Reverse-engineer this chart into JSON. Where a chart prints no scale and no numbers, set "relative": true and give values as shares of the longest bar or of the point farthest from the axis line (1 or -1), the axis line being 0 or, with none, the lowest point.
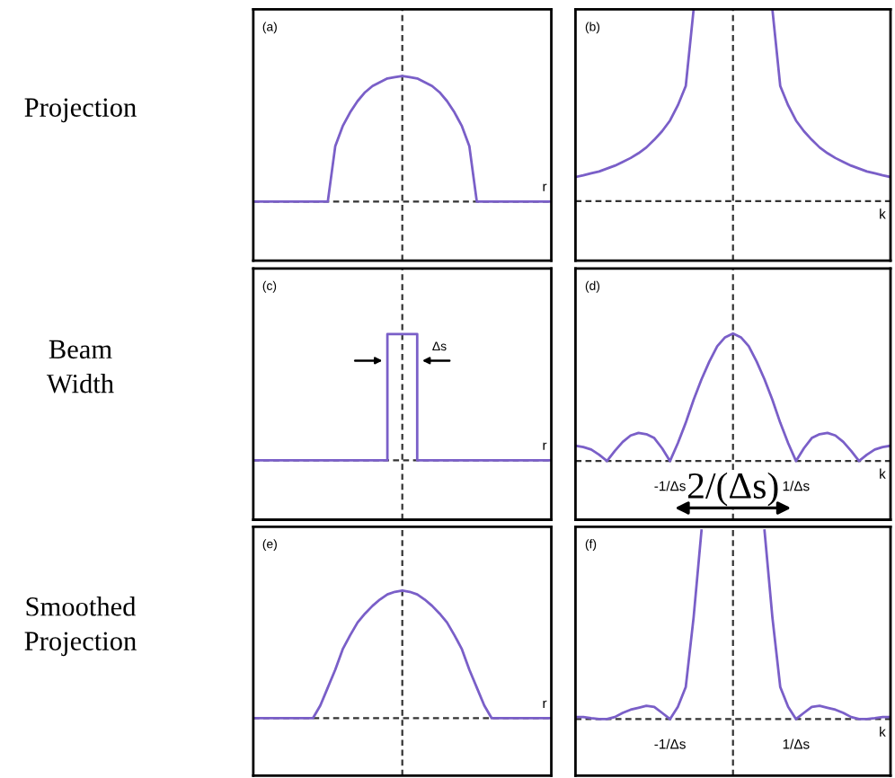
{
  "chart_data": [
    {
      "type": "line",
      "title": "(a)",
      "ylabel": "Projection",
      "xlabel": "r",
      "relative": true,
      "categories": [
        null,
        null,
        null,
        null,
        null,
        null,
        null,
        null,
        null,
        null,
        null,
        null,
        null,
        null,
        null,
        null,
        null,
        null,
        null,
        null,
        null,
        null,
        null,
        null,
        null,
        null,
        null,
        null,
        null,
        null,
        null,
        null,
        null,
        null,
        null,
        null,
        null,
        null,
        null,
        null,
        null
      ],
      "series": [
        {
          "color": "#7a5fc8",
          "values": [
            0,
            0,
            0,
            0,
            0,
            0,
            0,
            0,
            0,
            0,
            0,
            0.44,
            0.6,
            0.71,
            0.8,
            0.87,
            0.92,
            0.95,
            0.98,
            0.99,
            1,
            0.99,
            0.98,
            0.95,
            0.92,
            0.87,
            0.8,
            0.71,
            0.6,
            0.44,
            0,
            0,
            0,
            0,
            0,
            0,
            0,
            0,
            0,
            0,
            0
          ]
        }
      ]
    },
    {
      "type": "line",
      "title": "(b)",
      "xlabel": "k",
      "relative": true,
      "categories": [
        null,
        null,
        null,
        null,
        null,
        null,
        null,
        null,
        null,
        null,
        null,
        null,
        null,
        null,
        null,
        null,
        null,
        null,
        null,
        null,
        null,
        null,
        null,
        null,
        null,
        null,
        null,
        null,
        null,
        null,
        null,
        null,
        null,
        null,
        null,
        null,
        null,
        null,
        null,
        null,
        null
      ],
      "series": [
        {
          "color": "#7a5fc8",
          "values": [
            0.126,
            0.135,
            0.145,
            0.155,
            0.17,
            0.185,
            0.205,
            0.225,
            0.25,
            0.28,
            0.32,
            0.365,
            0.42,
            0.5,
            0.6,
            1,
            null,
            null,
            null,
            null,
            null,
            null,
            null,
            null,
            null,
            1,
            0.6,
            0.5,
            0.42,
            0.365,
            0.32,
            0.28,
            0.25,
            0.225,
            0.205,
            0.185,
            0.17,
            0.155,
            0.145,
            0.135,
            0.126
          ]
        }
      ]
    },
    {
      "type": "step",
      "title": "(c)",
      "ylabel": "Beam Width",
      "xlabel": "r",
      "relative": true,
      "annotations": [
        "Δs"
      ],
      "categories": [
        null,
        null,
        null,
        null,
        null,
        null,
        null,
        null,
        null,
        null,
        null,
        null,
        null,
        null,
        null,
        null,
        null,
        null,
        null,
        null,
        null,
        null,
        null,
        null,
        null,
        null,
        null,
        null,
        null,
        null,
        null,
        null,
        null,
        null,
        null,
        null,
        null,
        null,
        null,
        null,
        null
      ],
      "series": [
        {
          "color": "#7a5fc8",
          "values": [
            0,
            0,
            0,
            0,
            0,
            0,
            0,
            0,
            0,
            0,
            0,
            0,
            0,
            0,
            0,
            0,
            0,
            0,
            1,
            1,
            1,
            1,
            0,
            0,
            0,
            0,
            0,
            0,
            0,
            0,
            0,
            0,
            0,
            0,
            0,
            0,
            0,
            0,
            0,
            0,
            0
          ]
        }
      ]
    },
    {
      "type": "line",
      "title": "(d)",
      "xlabel": "k",
      "relative": true,
      "annotations": [
        "2/(Δs)"
      ],
      "categories": [
        null,
        null,
        null,
        null,
        null,
        null,
        null,
        null,
        null,
        null,
        null,
        null,
        "-1/Δs",
        null,
        null,
        null,
        null,
        null,
        null,
        null,
        null,
        null,
        null,
        null,
        null,
        null,
        null,
        null,
        "1/Δs",
        null,
        null,
        null,
        null,
        null,
        null,
        null,
        null,
        null,
        null,
        null,
        null
      ],
      "series": [
        {
          "color": "#7a5fc8",
          "values": [
            0.12,
            0.11,
            0.09,
            0.05,
            0,
            0.08,
            0.15,
            0.2,
            0.22,
            0.21,
            0.18,
            0.1,
            0,
            0.14,
            0.3,
            0.48,
            0.64,
            0.78,
            0.9,
            0.97,
            1,
            0.97,
            0.9,
            0.78,
            0.64,
            0.48,
            0.3,
            0.14,
            0,
            0.1,
            0.18,
            0.21,
            0.22,
            0.2,
            0.15,
            0.08,
            0,
            0.05,
            0.09,
            0.11,
            0.12
          ]
        }
      ]
    },
    {
      "type": "line",
      "title": "(e)",
      "ylabel": "Smoothed Projection",
      "xlabel": "r",
      "relative": true,
      "categories": [
        null,
        null,
        null,
        null,
        null,
        null,
        null,
        null,
        null,
        null,
        null,
        null,
        null,
        null,
        null,
        null,
        null,
        null,
        null,
        null,
        null,
        null,
        null,
        null,
        null,
        null,
        null,
        null,
        null,
        null,
        null,
        null,
        null,
        null,
        null,
        null,
        null,
        null,
        null,
        null,
        null
      ],
      "series": [
        {
          "color": "#7a5fc8",
          "values": [
            0,
            0,
            0,
            0,
            0,
            0,
            0,
            0,
            0,
            0.1,
            0.24,
            0.38,
            0.54,
            0.65,
            0.75,
            0.82,
            0.88,
            0.93,
            0.97,
            0.99,
            1,
            0.99,
            0.97,
            0.93,
            0.88,
            0.82,
            0.75,
            0.65,
            0.54,
            0.38,
            0.24,
            0.1,
            0,
            0,
            0,
            0,
            0,
            0,
            0,
            0,
            0
          ]
        }
      ]
    },
    {
      "type": "line",
      "title": "(f)",
      "xlabel": "k",
      "relative": true,
      "categories": [
        null,
        null,
        null,
        null,
        null,
        null,
        null,
        null,
        null,
        null,
        null,
        null,
        "-1/Δs",
        null,
        null,
        null,
        null,
        null,
        null,
        null,
        null,
        null,
        null,
        null,
        null,
        null,
        null,
        null,
        "1/Δs",
        null,
        null,
        null,
        null,
        null,
        null,
        null,
        null,
        null,
        null,
        null,
        null
      ],
      "series": [
        {
          "color": "#7a5fc8",
          "values": [
            0.011,
            0.011,
            0.005,
            0,
            0,
            0.011,
            0.033,
            0.05,
            0.06,
            0.07,
            0.065,
            0.033,
            0,
            0.065,
            0.17,
            0.54,
            1,
            null,
            null,
            null,
            null,
            null,
            null,
            null,
            1,
            0.54,
            0.17,
            0.065,
            0,
            0.033,
            0.065,
            0.07,
            0.06,
            0.05,
            0.033,
            0.011,
            0,
            0,
            0.005,
            0.011,
            0.011
          ]
        }
      ]
    }
  ]
}
